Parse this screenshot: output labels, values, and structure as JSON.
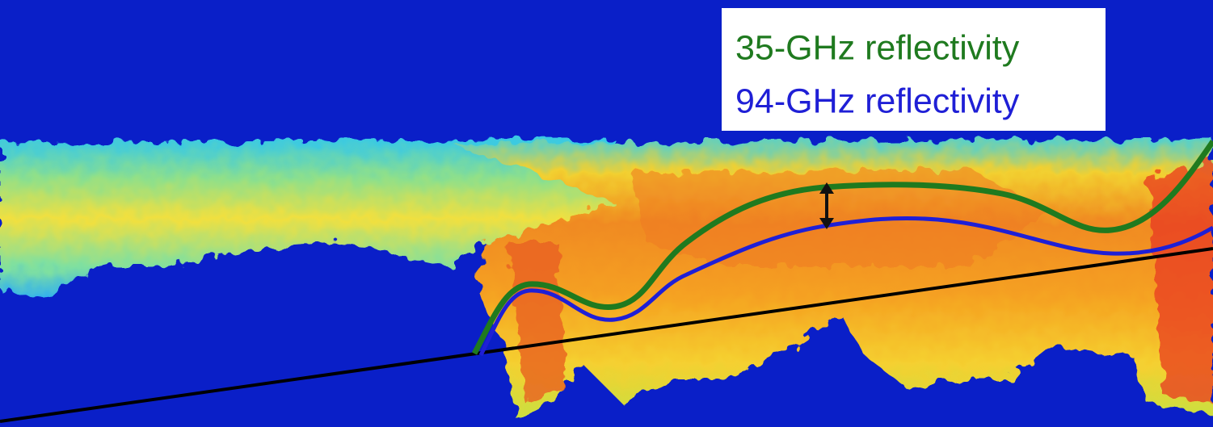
{
  "legend": {
    "items": [
      {
        "label": "35-GHz reflectivity",
        "color": "#1f7a1f"
      },
      {
        "label": "94-GHz reflectivity",
        "color": "#1f1fd6"
      }
    ]
  }
}
